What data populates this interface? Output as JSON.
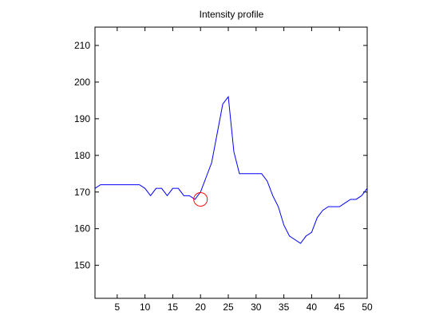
{
  "chart_data": {
    "type": "line",
    "title": "Intensity profile",
    "xlabel": "",
    "ylabel": "",
    "xlim": [
      1,
      50
    ],
    "ylim": [
      141,
      215
    ],
    "xticks": [
      5,
      10,
      15,
      20,
      25,
      30,
      35,
      40,
      45,
      50
    ],
    "yticks": [
      150,
      160,
      170,
      180,
      190,
      200,
      210
    ],
    "grid": false,
    "series": [
      {
        "color": "#0000ff",
        "x": [
          1,
          2,
          3,
          4,
          5,
          6,
          7,
          8,
          9,
          10,
          11,
          12,
          13,
          14,
          15,
          16,
          17,
          18,
          19,
          20,
          21,
          22,
          23,
          24,
          25,
          26,
          27,
          28,
          29,
          30,
          31,
          32,
          33,
          34,
          35,
          36,
          37,
          38,
          39,
          40,
          41,
          42,
          43,
          44,
          45,
          46,
          47,
          48,
          49,
          50
        ],
        "y": [
          171,
          172,
          172,
          172,
          172,
          172,
          172,
          172,
          172,
          171,
          169,
          171,
          171,
          169,
          171,
          171,
          169,
          169,
          168,
          170,
          174,
          178,
          186,
          194,
          196,
          181,
          175,
          175,
          175,
          175,
          175,
          173,
          169,
          166,
          161,
          158,
          157,
          156,
          158,
          159,
          163,
          165,
          166,
          166,
          166,
          167,
          168,
          168,
          169,
          171
        ]
      }
    ],
    "annotations": [
      {
        "type": "circle",
        "x": 20,
        "y": 168,
        "color": "#ff0000"
      }
    ]
  }
}
